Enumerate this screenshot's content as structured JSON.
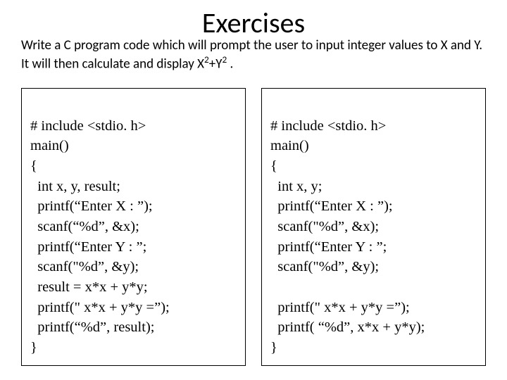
{
  "title": "Exercises",
  "description_html": "Write a C program code which will prompt the user to input integer values to X and Y. It will then calculate and display  X<sup>2</sup>+Y<sup>2</sup> .",
  "left": {
    "l0": "# include <stdio. h>",
    "l1": "main()",
    "l2": "{",
    "l3": "  int x, y, result;",
    "l4": "  printf(“Enter X : ”);",
    "l5": "  scanf(“%d”, &x);",
    "l6": "  printf(“Enter Y : ”;",
    "l7": "  scanf(\"%d”, &y);",
    "l8": "  result = x*x + y*y;",
    "l9": "  printf(\" x*x + y*y =”);",
    "l10": "  printf(“%d”, result);",
    "l11": "}"
  },
  "right": {
    "l0": "# include <stdio. h>",
    "l1": "main()",
    "l2": "{",
    "l3": "  int x, y;",
    "l4": "  printf(“Enter X : ”);",
    "l5": "  scanf(\"%d”, &x);",
    "l6": "  printf(“Enter Y : ”;",
    "l7": "  scanf(\"%d”, &y);",
    "l8": "",
    "l9": "  printf(\" x*x + y*y =”);",
    "l10": "  printf( “%d”, x*x + y*y);",
    "l11": "}"
  },
  "colors": {
    "background": "#ffffff",
    "border": "#000000",
    "text": "#000000"
  }
}
